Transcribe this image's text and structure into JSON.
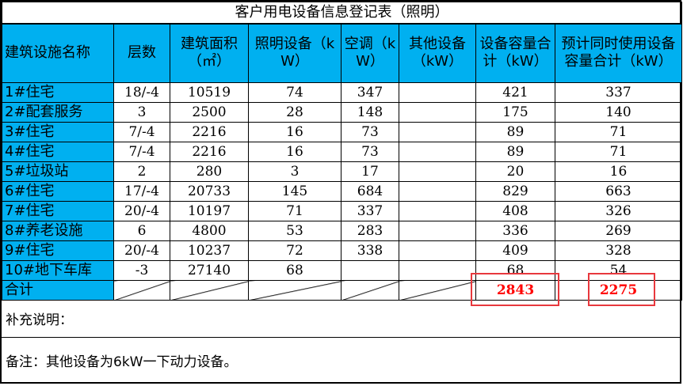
{
  "title": "客户用电设备信息登记表（照明）",
  "headers": [
    "建筑设施名称",
    "层数",
    "建筑面积（㎡）",
    "照明设备（kW）",
    "空调（kW）",
    "其他设备（kW）",
    "设备容量合计（kW）",
    "预计同时使用设备容量合计（kW）"
  ],
  "rows": [
    [
      "1#住宅",
      "18/-4",
      "10519",
      "74",
      "347",
      "",
      "421",
      "337"
    ],
    [
      "2#配套服务",
      "3",
      "2500",
      "28",
      "148",
      "",
      "175",
      "140"
    ],
    [
      "3#住宅",
      "7/-4",
      "2216",
      "16",
      "73",
      "",
      "89",
      "71"
    ],
    [
      "4#住宅",
      "7/-4",
      "2216",
      "16",
      "73",
      "",
      "89",
      "71"
    ],
    [
      "5#垃圾站",
      "2",
      "280",
      "3",
      "17",
      "",
      "20",
      "16"
    ],
    [
      "6#住宅",
      "17/-4",
      "20733",
      "145",
      "684",
      "",
      "829",
      "663"
    ],
    [
      "7#住宅",
      "20/-4",
      "10197",
      "71",
      "337",
      "",
      "408",
      "326"
    ],
    [
      "8#养老设施",
      "6",
      "4800",
      "53",
      "283",
      "",
      "336",
      "269"
    ],
    [
      "9#住宅",
      "20/-4",
      "10237",
      "72",
      "338",
      "",
      "409",
      "328"
    ],
    [
      "10#地下车库",
      "-3",
      "27140",
      "68",
      "",
      "",
      "68",
      "54"
    ]
  ],
  "total": {
    "label": "合计",
    "capacity": "2843",
    "simultaneous": "2275"
  },
  "supplement": "补充说明：",
  "remark": "备注：其他设备为6kW一下动力设备。",
  "colors": {
    "header_bg": "#00b0f0",
    "total_text": "#ff0000",
    "highlight_box": "#e8383d"
  }
}
